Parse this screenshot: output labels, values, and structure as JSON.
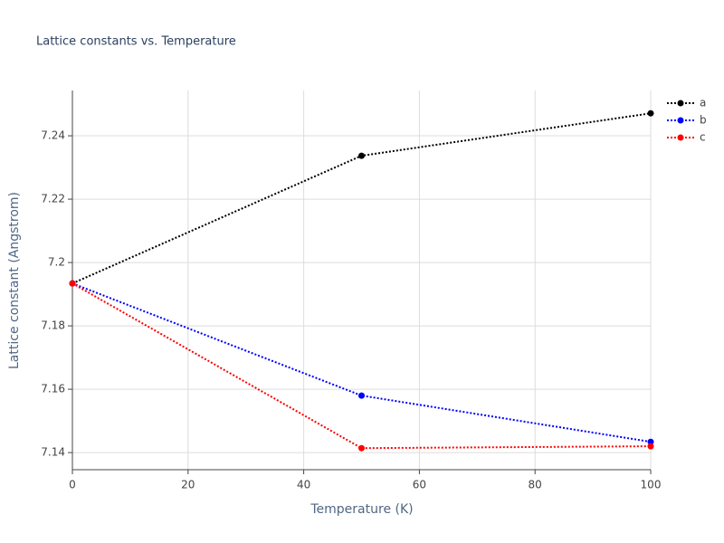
{
  "chart_data": {
    "type": "line",
    "title": "Lattice constants vs. Temperature",
    "x_label": "Temperature (K)",
    "y_label": "Lattice constant (Angstrom)",
    "x": [
      0,
      50,
      100
    ],
    "series": [
      {
        "name": "a",
        "color": "#000000",
        "values": [
          7.1934,
          7.2337,
          7.2471
        ]
      },
      {
        "name": "b",
        "color": "#0000ff",
        "values": [
          7.1934,
          7.158,
          7.1434
        ]
      },
      {
        "name": "c",
        "color": "#ff0000",
        "values": [
          7.1934,
          7.1414,
          7.142
        ]
      }
    ],
    "xlim": [
      0,
      100
    ],
    "xticks": [
      0,
      20,
      40,
      60,
      80,
      100
    ],
    "ylim": [
      7.1346,
      7.2543
    ],
    "yticks": [
      7.14,
      7.16,
      7.18,
      7.2,
      7.22,
      7.24
    ],
    "grid": true,
    "line_style": "dotted",
    "markers": true,
    "legend": "top-right"
  }
}
